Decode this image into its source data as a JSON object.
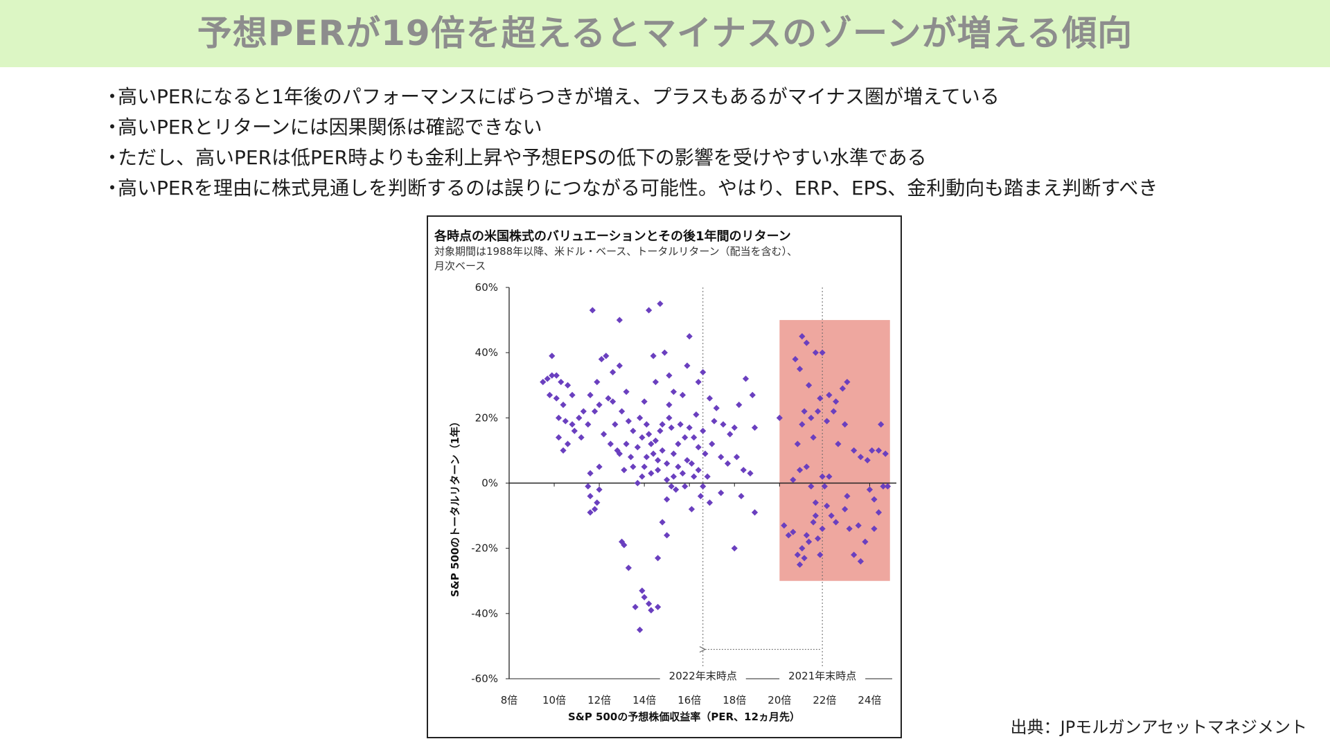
{
  "page": {
    "title": "予想PERが19倍を超えるとマイナスのゾーンが増える傾向",
    "bullets": [
      "高いPERになると1年後のパフォーマンスにばらつきが増え、プラスもあるがマイナス圏が増えている",
      "高いPERとリターンには因果関係は確認できない",
      "ただし、高いPERは低PER時よりも金利上昇や予想EPSの低下の影響を受けやすい水準である",
      "高いPERを理由に株式見通しを判断するのは誤りにつながる可能性。やはり、ERP、EPS、金利動向も踏まえ判断すべき"
    ],
    "bullet_marker": "・",
    "source": "出典：JPモルガンアセットマネジメント"
  },
  "chart_data": {
    "type": "scatter",
    "title": "各時点の米国株式のバリュエーションとその後1年間のリターン",
    "subtitle": "対象期間は1988年以降、米ドル・ベース、トータルリターン（配当を含む）、\n月次ベース",
    "xlabel": "S&P 500の予想株価収益率（PER、12ヵ月先）",
    "ylabel": "S&P 500のトータルリターン（1年）",
    "xlim": [
      8,
      25
    ],
    "ylim": [
      -60,
      60
    ],
    "x_ticks": [
      8,
      10,
      12,
      14,
      16,
      18,
      20,
      22,
      24
    ],
    "x_tick_labels": [
      "8倍",
      "10倍",
      "12倍",
      "14倍",
      "16倍",
      "18倍",
      "20倍",
      "22倍",
      "24倍"
    ],
    "y_ticks": [
      60,
      40,
      20,
      0,
      -20,
      -40,
      -60
    ],
    "y_tick_labels": [
      "60%",
      "40%",
      "20%",
      "0%",
      "-20%",
      "-40%",
      "-60%"
    ],
    "grid": false,
    "marker_color": "#6a3fbf",
    "highlight_region": {
      "x": [
        20.0,
        24.9
      ],
      "y": [
        -30,
        50
      ],
      "color": "#eea79f"
    },
    "reference_lines": [
      {
        "x": 16.6,
        "label": "2022年末時点"
      },
      {
        "x": 21.9,
        "label": "2021年末時点"
      }
    ],
    "arrow": {
      "from_x": 21.8,
      "to_x": 16.7,
      "y": -51
    },
    "points": [
      [
        9.5,
        31
      ],
      [
        9.7,
        32
      ],
      [
        9.9,
        33
      ],
      [
        10.1,
        33
      ],
      [
        10.3,
        31
      ],
      [
        9.8,
        27
      ],
      [
        10.1,
        26
      ],
      [
        10.4,
        24
      ],
      [
        9.9,
        39
      ],
      [
        10.6,
        30
      ],
      [
        10.2,
        20
      ],
      [
        10.5,
        19
      ],
      [
        10.8,
        18
      ],
      [
        10.2,
        14
      ],
      [
        10.6,
        12
      ],
      [
        10.4,
        10
      ],
      [
        10.9,
        16
      ],
      [
        11.1,
        20
      ],
      [
        11.3,
        22
      ],
      [
        10.8,
        27
      ],
      [
        11.6,
        27
      ],
      [
        11.2,
        14
      ],
      [
        11.5,
        18
      ],
      [
        11.8,
        22
      ],
      [
        12.0,
        24
      ],
      [
        11.9,
        31
      ],
      [
        12.1,
        38
      ],
      [
        12.3,
        39
      ],
      [
        11.7,
        53
      ],
      [
        12.4,
        26
      ],
      [
        12.6,
        25
      ],
      [
        12.7,
        18
      ],
      [
        12.2,
        15
      ],
      [
        12.5,
        12
      ],
      [
        12.8,
        10
      ],
      [
        11.6,
        3
      ],
      [
        12.0,
        5
      ],
      [
        11.6,
        -4
      ],
      [
        11.8,
        -8
      ],
      [
        12.0,
        -2
      ],
      [
        11.5,
        -1
      ],
      [
        11.6,
        -9
      ],
      [
        11.9,
        -6
      ],
      [
        12.9,
        36
      ],
      [
        12.6,
        34
      ],
      [
        12.9,
        50
      ],
      [
        13.2,
        28
      ],
      [
        13.0,
        22
      ],
      [
        13.3,
        19
      ],
      [
        13.5,
        16
      ],
      [
        13.2,
        12
      ],
      [
        13.4,
        8
      ],
      [
        13.1,
        4
      ],
      [
        13.7,
        0
      ],
      [
        12.9,
        9
      ],
      [
        13.1,
        -19
      ],
      [
        13.0,
        -18
      ],
      [
        13.3,
        -26
      ],
      [
        13.6,
        -38
      ],
      [
        13.9,
        -33
      ],
      [
        14.0,
        -35
      ],
      [
        14.2,
        -37
      ],
      [
        13.8,
        -45
      ],
      [
        14.2,
        53
      ],
      [
        14.3,
        12
      ],
      [
        14.0,
        25
      ],
      [
        14.5,
        31
      ],
      [
        14.7,
        55
      ],
      [
        14.4,
        39
      ],
      [
        14.9,
        40
      ],
      [
        14.8,
        18
      ],
      [
        15.1,
        24
      ],
      [
        15.3,
        28
      ],
      [
        15.1,
        33
      ],
      [
        15.7,
        27
      ],
      [
        15.9,
        36
      ],
      [
        16.0,
        45
      ],
      [
        16.6,
        34
      ],
      [
        16.4,
        31
      ],
      [
        16.9,
        26
      ],
      [
        17.2,
        23
      ],
      [
        17.5,
        18
      ],
      [
        17.8,
        15
      ],
      [
        17.0,
        12
      ],
      [
        17.4,
        8
      ],
      [
        17.7,
        6
      ],
      [
        18.0,
        17
      ],
      [
        18.2,
        24
      ],
      [
        18.5,
        32
      ],
      [
        18.8,
        27
      ],
      [
        18.9,
        17
      ],
      [
        18.1,
        8
      ],
      [
        18.4,
        4
      ],
      [
        18.7,
        3
      ],
      [
        15.2,
        -1
      ],
      [
        15.0,
        -5
      ],
      [
        15.4,
        -2
      ],
      [
        14.8,
        -12
      ],
      [
        15.0,
        -16
      ],
      [
        14.6,
        -23
      ],
      [
        14.6,
        -38
      ],
      [
        14.3,
        -39
      ],
      [
        15.8,
        -1
      ],
      [
        16.5,
        -4
      ],
      [
        16.1,
        -8
      ],
      [
        16.9,
        -6
      ],
      [
        17.4,
        -3
      ],
      [
        18.3,
        -4
      ],
      [
        18.9,
        -9
      ],
      [
        18.0,
        -20
      ],
      [
        13.8,
        20
      ],
      [
        14.1,
        18
      ],
      [
        14.2,
        15
      ],
      [
        14.5,
        13
      ],
      [
        14.8,
        10
      ],
      [
        14.6,
        7
      ],
      [
        14.0,
        5
      ],
      [
        14.3,
        3
      ],
      [
        15.0,
        6
      ],
      [
        15.3,
        9
      ],
      [
        15.5,
        12
      ],
      [
        15.8,
        14
      ],
      [
        15.2,
        17
      ],
      [
        15.6,
        18
      ],
      [
        16.0,
        17
      ],
      [
        16.2,
        14
      ],
      [
        16.4,
        11
      ],
      [
        16.7,
        9
      ],
      [
        16.1,
        6
      ],
      [
        16.4,
        4
      ],
      [
        16.8,
        2
      ],
      [
        15.7,
        3
      ],
      [
        15.0,
        1
      ],
      [
        13.7,
        11
      ],
      [
        13.9,
        14
      ],
      [
        14.4,
        9
      ],
      [
        14.7,
        16
      ],
      [
        15.3,
        2
      ],
      [
        15.9,
        7
      ],
      [
        16.6,
        16
      ],
      [
        13.5,
        5
      ],
      [
        13.9,
        2
      ],
      [
        14.1,
        8
      ],
      [
        14.6,
        4
      ],
      [
        15.5,
        5
      ],
      [
        16.2,
        2
      ],
      [
        15.1,
        20
      ],
      [
        16.3,
        21
      ],
      [
        17.1,
        19
      ],
      [
        16.6,
        -1
      ],
      [
        20.0,
        20
      ],
      [
        20.2,
        -13
      ],
      [
        20.4,
        -16
      ],
      [
        20.6,
        -15
      ],
      [
        20.8,
        -22
      ],
      [
        20.9,
        -25
      ],
      [
        21.1,
        -23
      ],
      [
        21.3,
        -18
      ],
      [
        21.5,
        -12
      ],
      [
        21.6,
        -10
      ],
      [
        21.7,
        -17
      ],
      [
        21.9,
        -14
      ],
      [
        21.2,
        -16
      ],
      [
        21.0,
        -20
      ],
      [
        21.8,
        -22
      ],
      [
        22.1,
        -7
      ],
      [
        22.3,
        -10
      ],
      [
        22.5,
        -12
      ],
      [
        22.9,
        -8
      ],
      [
        23.1,
        -14
      ],
      [
        23.3,
        -22
      ],
      [
        23.6,
        -24
      ],
      [
        23.8,
        -18
      ],
      [
        23.5,
        -13
      ],
      [
        24.0,
        -2
      ],
      [
        24.2,
        -5
      ],
      [
        24.4,
        -9
      ],
      [
        24.6,
        -1
      ],
      [
        22.0,
        -1
      ],
      [
        21.0,
        45
      ],
      [
        21.2,
        43
      ],
      [
        21.6,
        40
      ],
      [
        21.9,
        40
      ],
      [
        20.7,
        38
      ],
      [
        20.9,
        35
      ],
      [
        21.3,
        30
      ],
      [
        21.8,
        26
      ],
      [
        21.1,
        22
      ],
      [
        21.4,
        20
      ],
      [
        21.7,
        22
      ],
      [
        22.2,
        27
      ],
      [
        22.5,
        25
      ],
      [
        22.8,
        29
      ],
      [
        23.0,
        31
      ],
      [
        21.0,
        18
      ],
      [
        21.5,
        14
      ],
      [
        22.1,
        19
      ],
      [
        22.4,
        22
      ],
      [
        22.6,
        12
      ],
      [
        22.9,
        18
      ],
      [
        23.3,
        10
      ],
      [
        23.6,
        8
      ],
      [
        23.9,
        7
      ],
      [
        24.1,
        10
      ],
      [
        24.4,
        10
      ],
      [
        24.7,
        9
      ],
      [
        24.5,
        18
      ],
      [
        21.2,
        5
      ],
      [
        21.9,
        2
      ],
      [
        22.2,
        2
      ],
      [
        20.6,
        1
      ],
      [
        20.9,
        4
      ],
      [
        21.4,
        -1
      ],
      [
        23.0,
        -4
      ],
      [
        20.8,
        12
      ],
      [
        21.6,
        -6
      ],
      [
        24.8,
        -1
      ],
      [
        24.2,
        -14
      ]
    ]
  }
}
